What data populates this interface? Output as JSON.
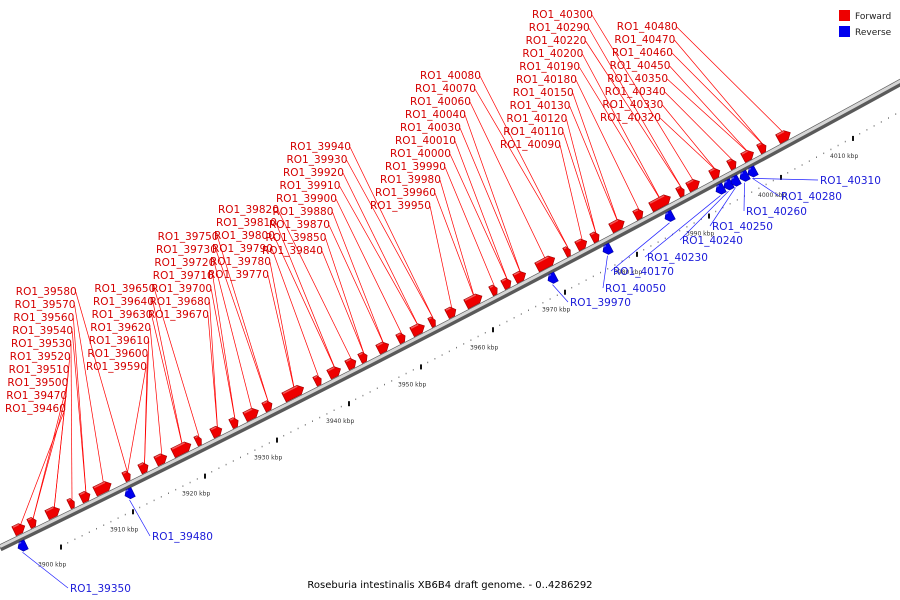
{
  "caption": "Roseburia intestinalis XB6B4 draft genome. - 0..4286292",
  "legend": [
    {
      "label": "Forward",
      "color": "#ee0000"
    },
    {
      "label": "Reverse",
      "color": "#0000ee"
    }
  ],
  "colors": {
    "forward": "#ee0000",
    "reverse": "#0000ee",
    "leader": "#ff0000",
    "leader_reverse": "#2020ff",
    "backbone": "#888888"
  },
  "axis": {
    "kbp": [
      3900,
      3910,
      3920,
      3930,
      3940,
      3950,
      3960,
      3970,
      3980,
      3990,
      4000,
      4010
    ]
  },
  "forward_labels": [
    "RO1_39460",
    "RO1_39470",
    "RO1_39500",
    "RO1_39510",
    "RO1_39520",
    "RO1_39530",
    "RO1_39540",
    "RO1_39560",
    "RO1_39570",
    "RO1_39580",
    "RO1_39590",
    "RO1_39600",
    "RO1_39610",
    "RO1_39620",
    "RO1_39630",
    "RO1_39640",
    "RO1_39650",
    "RO1_39670",
    "RO1_39680",
    "RO1_39700",
    "RO1_39710",
    "RO1_39720",
    "RO1_39730",
    "RO1_39750",
    "RO1_39770",
    "RO1_39780",
    "RO1_39790",
    "RO1_39800",
    "RO1_39810",
    "RO1_39820",
    "RO1_39840",
    "RO1_39850",
    "RO1_39870",
    "RO1_39880",
    "RO1_39900",
    "RO1_39910",
    "RO1_39920",
    "RO1_39930",
    "RO1_39940",
    "RO1_39950",
    "RO1_39960",
    "RO1_39980",
    "RO1_39990",
    "RO1_40000",
    "RO1_40010",
    "RO1_40030",
    "RO1_40040",
    "RO1_40060",
    "RO1_40070",
    "RO1_40080",
    "RO1_40090",
    "RO1_40110",
    "RO1_40120",
    "RO1_40130",
    "RO1_40150",
    "RO1_40180",
    "RO1_40190",
    "RO1_40200",
    "RO1_40220",
    "RO1_40290",
    "RO1_40300",
    "RO1_40320",
    "RO1_40330",
    "RO1_40340",
    "RO1_40350",
    "RO1_40450",
    "RO1_40460",
    "RO1_40470",
    "RO1_40480"
  ],
  "reverse_labels": [
    "RO1_39350",
    "RO1_39480",
    "RO1_39970",
    "RO1_40050",
    "RO1_40170",
    "RO1_40230",
    "RO1_40240",
    "RO1_40250",
    "RO1_40260",
    "RO1_40280",
    "RO1_40310"
  ]
}
